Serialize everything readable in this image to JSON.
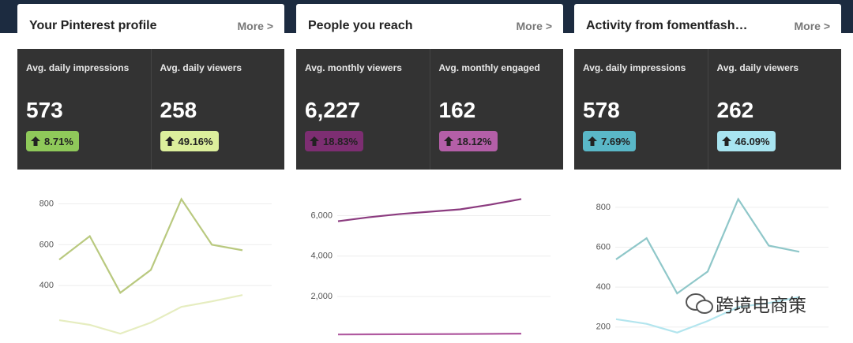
{
  "cards": [
    {
      "title": "Your Pinterest profile",
      "more": "More >",
      "stats": [
        {
          "label": "Avg. daily impressions",
          "value": "573",
          "change": "8.71%",
          "color": "#8fc95a"
        },
        {
          "label": "Avg. daily viewers",
          "value": "258",
          "change": "49.16%",
          "color": "#dcef9c"
        }
      ],
      "chart": {
        "type": "line",
        "ylim": [
          100,
          910
        ],
        "yticks": [
          400,
          600,
          800
        ],
        "series": [
          {
            "color": "#b9c97f",
            "values": [
              527,
              642,
              365,
              477,
              823,
              600,
              573
            ]
          },
          {
            "color": "#e6edc0",
            "values": [
              231,
              208,
              165,
              219,
              296,
              323,
              354
            ]
          }
        ]
      }
    },
    {
      "title": "People you reach",
      "more": "More >",
      "stats": [
        {
          "label": "Avg. monthly viewers",
          "value": "6,227",
          "change": "18.83%",
          "color": "#7d2e72"
        },
        {
          "label": "Avg. monthly engaged",
          "value": "162",
          "change": "18.12%",
          "color": "#b45fa8"
        }
      ],
      "chart": {
        "type": "line",
        "ylim": [
          -500,
          7700
        ],
        "yticks": [
          {
            "value": 2000,
            "label": "2,000"
          },
          {
            "value": 4000,
            "label": "4,000"
          },
          {
            "value": 6000,
            "label": "6,000"
          }
        ],
        "series": [
          {
            "color": "#8b3b7f",
            "values": [
              5725,
              5920,
              6078,
              6196,
              6314,
              6549,
              6824
            ]
          },
          {
            "color": "#b05aa0",
            "values": [
              118,
              125,
              130,
              135,
              140,
              150,
              160
            ]
          }
        ]
      }
    },
    {
      "title": "Activity from fomentfash…",
      "more": "More >",
      "stats": [
        {
          "label": "Avg. daily impressions",
          "value": "578",
          "change": "7.69%",
          "color": "#5ab8c8"
        },
        {
          "label": "Avg. daily viewers",
          "value": "262",
          "change": "46.09%",
          "color": "#a8e4f0"
        }
      ],
      "chart": {
        "type": "line",
        "ylim": [
          100,
          930
        ],
        "yticks": [
          200,
          400,
          600,
          800
        ],
        "series": [
          {
            "color": "#8fc7c9",
            "values": [
              539,
              645,
              368,
              478,
              841,
              608,
              577
            ]
          },
          {
            "color": "#b3e5ee",
            "values": [
              239,
              216,
              172,
              230,
              300,
              320,
              350
            ]
          }
        ]
      }
    }
  ],
  "watermark": "跨境电商策"
}
